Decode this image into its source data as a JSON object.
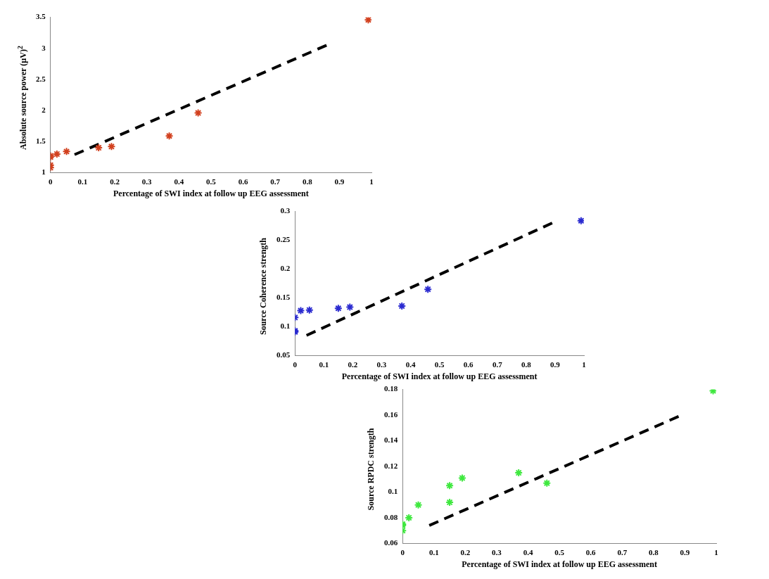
{
  "chart_data": [
    {
      "type": "scatter",
      "xlabel": "Percentage of SWI index at follow up EEG assessment",
      "ylabel": "Absolute source power (µV)$^{2}$",
      "xlim": [
        0,
        1
      ],
      "xticks": [
        0,
        0.1,
        0.2,
        0.3,
        0.4,
        0.5,
        0.6,
        0.7,
        0.8,
        0.9,
        1
      ],
      "ylim": [
        1,
        3.5
      ],
      "yticks": [
        1,
        1.5,
        2,
        2.5,
        3,
        3.5
      ],
      "grid": false,
      "legend": false,
      "marker": "cross",
      "series": [
        {
          "type": "scatter",
          "color": "#d2401e",
          "x": [
            0,
            0,
            0,
            0,
            0.02,
            0.05,
            0.15,
            0.19,
            0.37,
            0.46,
            0.99
          ],
          "values": [
            1.27,
            1.25,
            1.12,
            1.08,
            1.3,
            1.34,
            1.4,
            1.42,
            1.59,
            1.96,
            3.46
          ]
        },
        {
          "type": "line",
          "color": "#000000",
          "line_style": "dashed",
          "marker": "none",
          "x": [
            0.075,
            0.86
          ],
          "values": [
            1.29,
            3.05
          ]
        }
      ]
    },
    {
      "type": "scatter",
      "xlabel": "Percentage of SWI index at follow up EEG assessment",
      "ylabel": "Source Coherence strength",
      "xlim": [
        0,
        1
      ],
      "xticks": [
        0,
        0.1,
        0.2,
        0.3,
        0.4,
        0.5,
        0.6,
        0.7,
        0.8,
        0.9,
        1
      ],
      "ylim": [
        0.05,
        0.3
      ],
      "yticks": [
        0.05,
        0.1,
        0.15,
        0.2,
        0.25,
        0.3
      ],
      "grid": false,
      "legend": false,
      "marker": "cross",
      "series": [
        {
          "type": "scatter",
          "color": "#2a2ad0",
          "x": [
            0,
            0,
            0,
            0.02,
            0.05,
            0.15,
            0.19,
            0.37,
            0.46,
            0.99
          ],
          "values": [
            0.116,
            0.093,
            0.091,
            0.128,
            0.129,
            0.132,
            0.134,
            0.136,
            0.165,
            0.284
          ]
        },
        {
          "type": "line",
          "color": "#000000",
          "line_style": "dashed",
          "marker": "none",
          "x": [
            0.04,
            0.89
          ],
          "values": [
            0.085,
            0.28
          ]
        }
      ]
    },
    {
      "type": "scatter",
      "xlabel": "Percentage of SWI index at follow up EEG assessment",
      "ylabel": "Source RPDC strength",
      "xlim": [
        0,
        1
      ],
      "xticks": [
        0,
        0.1,
        0.2,
        0.3,
        0.4,
        0.5,
        0.6,
        0.7,
        0.8,
        0.9,
        1
      ],
      "ylim": [
        0.06,
        0.18
      ],
      "yticks": [
        0.06,
        0.08,
        0.1,
        0.12,
        0.14,
        0.16,
        0.18
      ],
      "grid": false,
      "legend": false,
      "marker": "cross",
      "series": [
        {
          "type": "scatter",
          "color": "#3ee83e",
          "x": [
            0,
            0,
            0,
            0.02,
            0.05,
            0.15,
            0.15,
            0.19,
            0.37,
            0.46,
            0.99
          ],
          "values": [
            0.075,
            0.074,
            0.07,
            0.08,
            0.09,
            0.105,
            0.092,
            0.111,
            0.115,
            0.107,
            0.179
          ]
        },
        {
          "type": "line",
          "color": "#000000",
          "line_style": "dashed",
          "marker": "none",
          "x": [
            0.085,
            0.88
          ],
          "values": [
            0.074,
            0.159
          ]
        }
      ]
    }
  ]
}
